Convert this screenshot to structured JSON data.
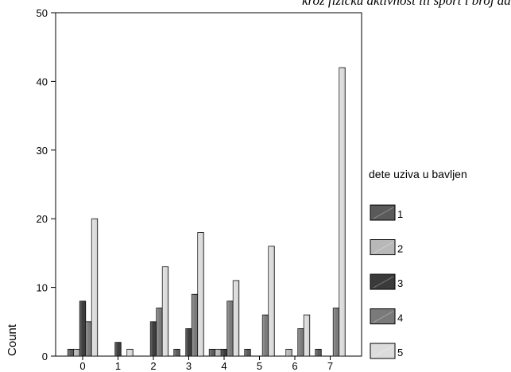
{
  "chart_data": {
    "type": "bar",
    "title": "kroz fizičku aktivnost ili sport i broj dana u nedelji",
    "xlabel": "",
    "ylabel": "Count",
    "ylim": [
      0,
      50
    ],
    "yticks": [
      0,
      10,
      20,
      30,
      40,
      50
    ],
    "categories": [
      "0",
      "1",
      "2",
      "3",
      "4",
      "5",
      "6",
      "7"
    ],
    "legend_title": "dete uziva u bavljen",
    "legend_position": "right",
    "grid": false,
    "series": [
      {
        "name": "1",
        "color": "#5a5a5a",
        "values": [
          1,
          0,
          0,
          1,
          1,
          1,
          0,
          1
        ]
      },
      {
        "name": "2",
        "color": "#b8b8b8",
        "values": [
          1,
          0,
          0,
          0,
          1,
          0,
          1,
          0
        ]
      },
      {
        "name": "3",
        "color": "#3a3a3a",
        "values": [
          8,
          2,
          5,
          4,
          1,
          0,
          0,
          0
        ]
      },
      {
        "name": "4",
        "color": "#7a7a7a",
        "values": [
          5,
          0,
          7,
          9,
          8,
          6,
          4,
          7
        ]
      },
      {
        "name": "5",
        "color": "#dcdcdc",
        "values": [
          20,
          1,
          13,
          18,
          11,
          16,
          6,
          42
        ]
      }
    ]
  }
}
